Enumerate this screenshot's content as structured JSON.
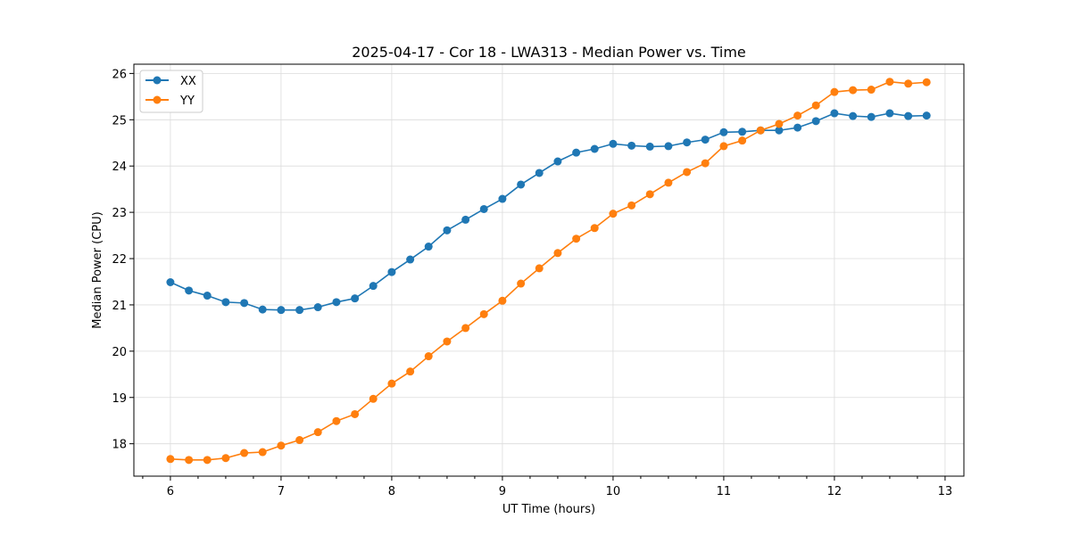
{
  "chart_data": {
    "type": "line",
    "title": "2025-04-17 - Cor 18 - LWA313 - Median Power vs. Time",
    "xlabel": "UT Time (hours)",
    "ylabel": "Median Power (CPU)",
    "xlim": [
      5.67,
      13.17
    ],
    "ylim": [
      17.3,
      26.2
    ],
    "xticks": [
      6,
      7,
      8,
      9,
      10,
      11,
      12,
      13
    ],
    "xtick_labels": [
      "6",
      "7",
      "8",
      "9",
      "10",
      "11",
      "12",
      "13"
    ],
    "yticks": [
      18,
      19,
      20,
      21,
      22,
      23,
      24,
      25,
      26
    ],
    "ytick_labels": [
      "18",
      "19",
      "20",
      "21",
      "22",
      "23",
      "24",
      "25",
      "26"
    ],
    "grid": true,
    "legend_position": "top-left",
    "x": [
      6.0,
      6.167,
      6.333,
      6.5,
      6.667,
      6.833,
      7.0,
      7.167,
      7.333,
      7.5,
      7.667,
      7.833,
      8.0,
      8.167,
      8.333,
      8.5,
      8.667,
      8.833,
      9.0,
      9.167,
      9.333,
      9.5,
      9.667,
      9.833,
      10.0,
      10.167,
      10.333,
      10.5,
      10.667,
      10.833,
      11.0,
      11.167,
      11.333,
      11.5,
      11.667,
      11.833,
      12.0,
      12.167,
      12.333,
      12.5,
      12.667,
      12.833
    ],
    "series": [
      {
        "name": "XX",
        "color": "#1f77b4",
        "values": [
          21.49,
          21.31,
          21.2,
          21.06,
          21.04,
          20.9,
          20.89,
          20.89,
          20.95,
          21.06,
          21.14,
          21.41,
          21.71,
          21.98,
          22.26,
          22.61,
          22.84,
          23.07,
          23.29,
          23.6,
          23.85,
          24.1,
          24.29,
          24.37,
          24.48,
          24.44,
          24.42,
          24.43,
          24.51,
          24.57,
          24.73,
          24.74,
          24.77,
          24.77,
          24.83,
          24.97,
          25.14,
          25.08,
          25.06,
          25.14,
          25.08,
          25.09
        ]
      },
      {
        "name": "YY",
        "color": "#ff7f0e",
        "values": [
          17.67,
          17.65,
          17.65,
          17.69,
          17.8,
          17.82,
          17.96,
          18.08,
          18.25,
          18.49,
          18.64,
          18.97,
          19.3,
          19.56,
          19.89,
          20.21,
          20.5,
          20.8,
          21.09,
          21.46,
          21.79,
          22.12,
          22.43,
          22.66,
          22.97,
          23.15,
          23.39,
          23.64,
          23.87,
          24.06,
          24.43,
          24.55,
          24.77,
          24.91,
          25.09,
          25.31,
          25.6,
          25.64,
          25.65,
          25.82,
          25.78,
          25.81
        ]
      }
    ]
  }
}
